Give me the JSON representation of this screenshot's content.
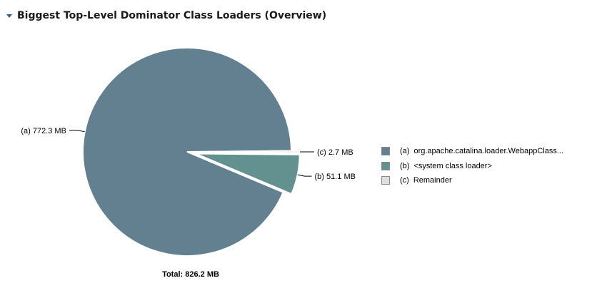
{
  "header": {
    "title": "Biggest Top-Level Dominator Class Loaders (Overview)",
    "toggle_icon": "triangle-down-icon"
  },
  "chart_data": {
    "type": "pie",
    "unit": "MB",
    "total_label": "Total: 826.2 MB",
    "slices": [
      {
        "key": "(a)",
        "name": "org.apache.catalina.loader.WebappClass...",
        "value": 772.3,
        "value_label": "772.3 MB",
        "color": "#62808f",
        "exploded": false
      },
      {
        "key": "(b)",
        "name": "<system class loader>",
        "value": 51.1,
        "value_label": "51.1 MB",
        "color": "#629190",
        "exploded": true
      },
      {
        "key": "(c)",
        "name": "Remainder",
        "value": 2.7,
        "value_label": "2.7 MB",
        "color": "#dedede",
        "exploded": true
      }
    ],
    "legend_position": "right"
  },
  "colors": {
    "header_icon": "#3a5a8c",
    "leader_line": "#000000",
    "slice_border": "#ffffff"
  }
}
